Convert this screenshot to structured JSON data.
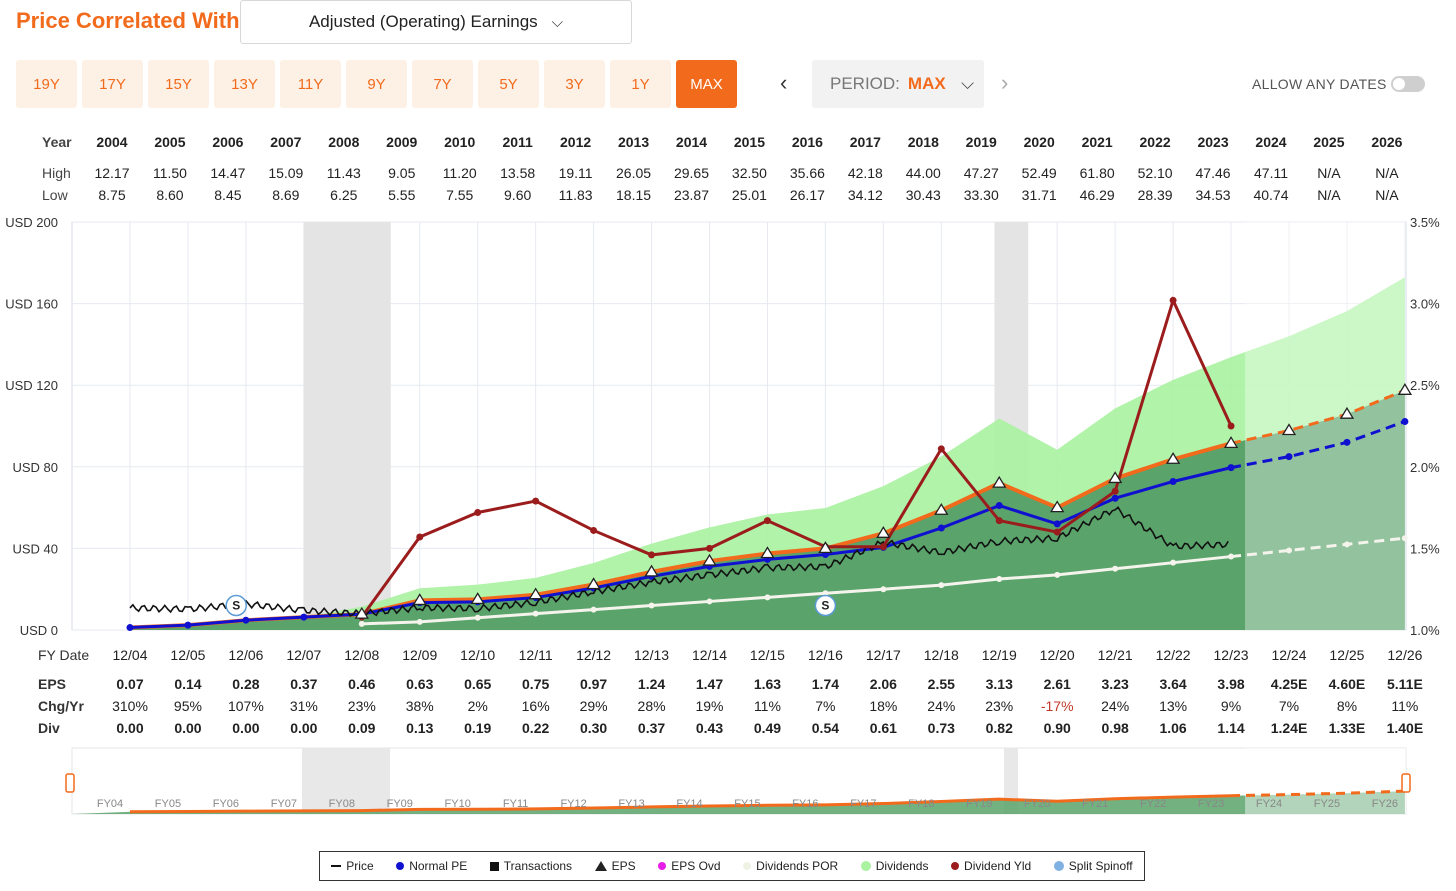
{
  "header": {
    "title": "Price Correlated With",
    "metric_select": "Adjusted (Operating) Earnings"
  },
  "periods": [
    {
      "label": "19Y",
      "active": false
    },
    {
      "label": "17Y",
      "active": false
    },
    {
      "label": "15Y",
      "active": false
    },
    {
      "label": "13Y",
      "active": false
    },
    {
      "label": "11Y",
      "active": false
    },
    {
      "label": "9Y",
      "active": false
    },
    {
      "label": "7Y",
      "active": false
    },
    {
      "label": "5Y",
      "active": false
    },
    {
      "label": "3Y",
      "active": false
    },
    {
      "label": "1Y",
      "active": false
    },
    {
      "label": "MAX",
      "active": true
    }
  ],
  "period_select": {
    "label": "PERIOD:",
    "value": "MAX"
  },
  "allow_any_dates": {
    "label": "ALLOW ANY DATES",
    "on": false
  },
  "year_table": {
    "labels": {
      "year": "Year",
      "high": "High",
      "low": "Low"
    },
    "years": [
      "2004",
      "2005",
      "2006",
      "2007",
      "2008",
      "2009",
      "2010",
      "2011",
      "2012",
      "2013",
      "2014",
      "2015",
      "2016",
      "2017",
      "2018",
      "2019",
      "2020",
      "2021",
      "2022",
      "2023",
      "2024",
      "2025",
      "2026"
    ],
    "high": [
      "12.17",
      "11.50",
      "14.47",
      "15.09",
      "11.43",
      "9.05",
      "11.20",
      "13.58",
      "19.11",
      "26.05",
      "29.65",
      "32.50",
      "35.66",
      "42.18",
      "44.00",
      "47.27",
      "52.49",
      "61.80",
      "52.10",
      "47.46",
      "47.11",
      "N/A",
      "N/A"
    ],
    "low": [
      "8.75",
      "8.60",
      "8.45",
      "8.69",
      "6.25",
      "5.55",
      "7.55",
      "9.60",
      "11.83",
      "18.15",
      "23.87",
      "25.01",
      "26.17",
      "34.12",
      "30.43",
      "33.30",
      "31.71",
      "46.29",
      "28.39",
      "34.53",
      "40.74",
      "N/A",
      "N/A"
    ]
  },
  "eps_table": {
    "labels": {
      "fy": "FY Date",
      "eps": "EPS",
      "chg": "Chg/Yr",
      "div": "Div"
    },
    "fy": [
      "12/04",
      "12/05",
      "12/06",
      "12/07",
      "12/08",
      "12/09",
      "12/10",
      "12/11",
      "12/12",
      "12/13",
      "12/14",
      "12/15",
      "12/16",
      "12/17",
      "12/18",
      "12/19",
      "12/20",
      "12/21",
      "12/22",
      "12/23",
      "12/24",
      "12/25",
      "12/26"
    ],
    "eps": [
      "0.07",
      "0.14",
      "0.28",
      "0.37",
      "0.46",
      "0.63",
      "0.65",
      "0.75",
      "0.97",
      "1.24",
      "1.47",
      "1.63",
      "1.74",
      "2.06",
      "2.55",
      "3.13",
      "2.61",
      "3.23",
      "3.64",
      "3.98",
      "4.25E",
      "4.60E",
      "5.11E"
    ],
    "chg": [
      "310%",
      "95%",
      "107%",
      "31%",
      "23%",
      "38%",
      "2%",
      "16%",
      "29%",
      "28%",
      "19%",
      "11%",
      "7%",
      "18%",
      "24%",
      "23%",
      "-17%",
      "24%",
      "13%",
      "9%",
      "7%",
      "8%",
      "11%"
    ],
    "div": [
      "0.00",
      "0.00",
      "0.00",
      "0.00",
      "0.09",
      "0.13",
      "0.19",
      "0.22",
      "0.30",
      "0.37",
      "0.43",
      "0.49",
      "0.54",
      "0.61",
      "0.73",
      "0.82",
      "0.90",
      "0.98",
      "1.06",
      "1.14",
      "1.24E",
      "1.33E",
      "1.40E"
    ]
  },
  "colors": {
    "accent": "#f26a1b",
    "eps_band": "#5aa36b",
    "dividends": "#a8f2a0",
    "normal_pe": "#1010d0",
    "eps_line": "#f26a1b",
    "div_yield": "#9b1c1c",
    "price": "#111111",
    "div_por": "#f2f2ea",
    "forecast": "#9dc9a8"
  },
  "chart_data": {
    "type": "line",
    "x": [
      "12/04",
      "12/05",
      "12/06",
      "12/07",
      "12/08",
      "12/09",
      "12/10",
      "12/11",
      "12/12",
      "12/13",
      "12/14",
      "12/15",
      "12/16",
      "12/17",
      "12/18",
      "12/19",
      "12/20",
      "12/21",
      "12/22",
      "12/23",
      "12/24",
      "12/25",
      "12/26"
    ],
    "y_left": {
      "ticks": [
        "USD 0",
        "USD 40",
        "USD 80",
        "USD 120",
        "USD 160",
        "USD 200"
      ],
      "range": [
        0,
        200
      ]
    },
    "y_right": {
      "ticks": [
        "1.0%",
        "1.5%",
        "2.0%",
        "2.5%",
        "3.0%",
        "3.5%"
      ],
      "range": [
        1.0,
        3.5
      ]
    },
    "recession_shading": [
      [
        "12/07",
        "06/09"
      ],
      [
        "11/19",
        "06/20"
      ]
    ],
    "series": [
      {
        "name": "EPS",
        "values": [
          1.2,
          2.4,
          4.8,
          6.3,
          7.8,
          14.5,
          15.0,
          17.3,
          22.3,
          28.5,
          33.8,
          37.5,
          40.0,
          47.4,
          58.7,
          72.0,
          60.0,
          74.3,
          83.7,
          91.5,
          97.8,
          105.8,
          117.5
        ]
      },
      {
        "name": "Normal PE",
        "values": [
          1.2,
          2.4,
          4.8,
          6.3,
          7.8,
          13.4,
          13.8,
          15.9,
          20.6,
          26.3,
          31.2,
          34.6,
          37.0,
          40.5,
          50.0,
          61.0,
          52.0,
          64.6,
          72.8,
          79.6,
          85.0,
          92.0,
          102.2
        ]
      },
      {
        "name": "Dividends",
        "values": [
          0,
          0,
          0,
          0,
          11,
          18,
          22,
          25,
          32,
          42,
          50,
          58,
          60,
          70,
          80,
          96,
          86,
          104,
          118,
          128,
          140,
          153,
          168
        ]
      },
      {
        "name": "Dividends POR",
        "values": [
          null,
          null,
          null,
          null,
          3,
          4,
          6,
          8,
          10,
          12,
          14,
          16,
          18,
          20,
          22,
          25,
          27,
          30,
          33,
          36,
          39,
          42,
          45
        ]
      },
      {
        "name": "Dividend Yld",
        "values": [
          null,
          null,
          null,
          null,
          1.08,
          1.57,
          1.72,
          1.79,
          1.61,
          1.46,
          1.5,
          1.67,
          1.51,
          1.51,
          2.11,
          1.67,
          1.6,
          1.85,
          3.02,
          2.25,
          null,
          null,
          null
        ]
      },
      {
        "name": "Price",
        "values": [
          10.8,
          10.2,
          12.8,
          9.6,
          8.0,
          11.0,
          10.5,
          13.6,
          18.8,
          23.5,
          27.0,
          30.5,
          31.0,
          43.0,
          38.0,
          43.5,
          45.0,
          59.5,
          41.0,
          42.0,
          null,
          null,
          null
        ]
      }
    ],
    "markers": [
      {
        "label": "S",
        "x": "10/06",
        "series": "Split Spinoff"
      },
      {
        "label": "S",
        "x": "12/16",
        "series": "Split Spinoff"
      }
    ],
    "legend": {
      "position": "bottom",
      "items": [
        "Price",
        "Normal PE",
        "Transactions",
        "EPS",
        "EPS Ovd",
        "Dividends POR",
        "Dividends",
        "Dividend Yld",
        "Split Spinoff"
      ]
    },
    "overview": {
      "fy_labels": [
        "FY04",
        "FY05",
        "FY06",
        "FY07",
        "FY08",
        "FY09",
        "FY10",
        "FY11",
        "FY12",
        "FY13",
        "FY14",
        "FY15",
        "FY16",
        "FY17",
        "FY18",
        "FY19",
        "FY20",
        "FY21",
        "FY22",
        "FY23",
        "FY24",
        "FY25",
        "FY26"
      ]
    }
  }
}
